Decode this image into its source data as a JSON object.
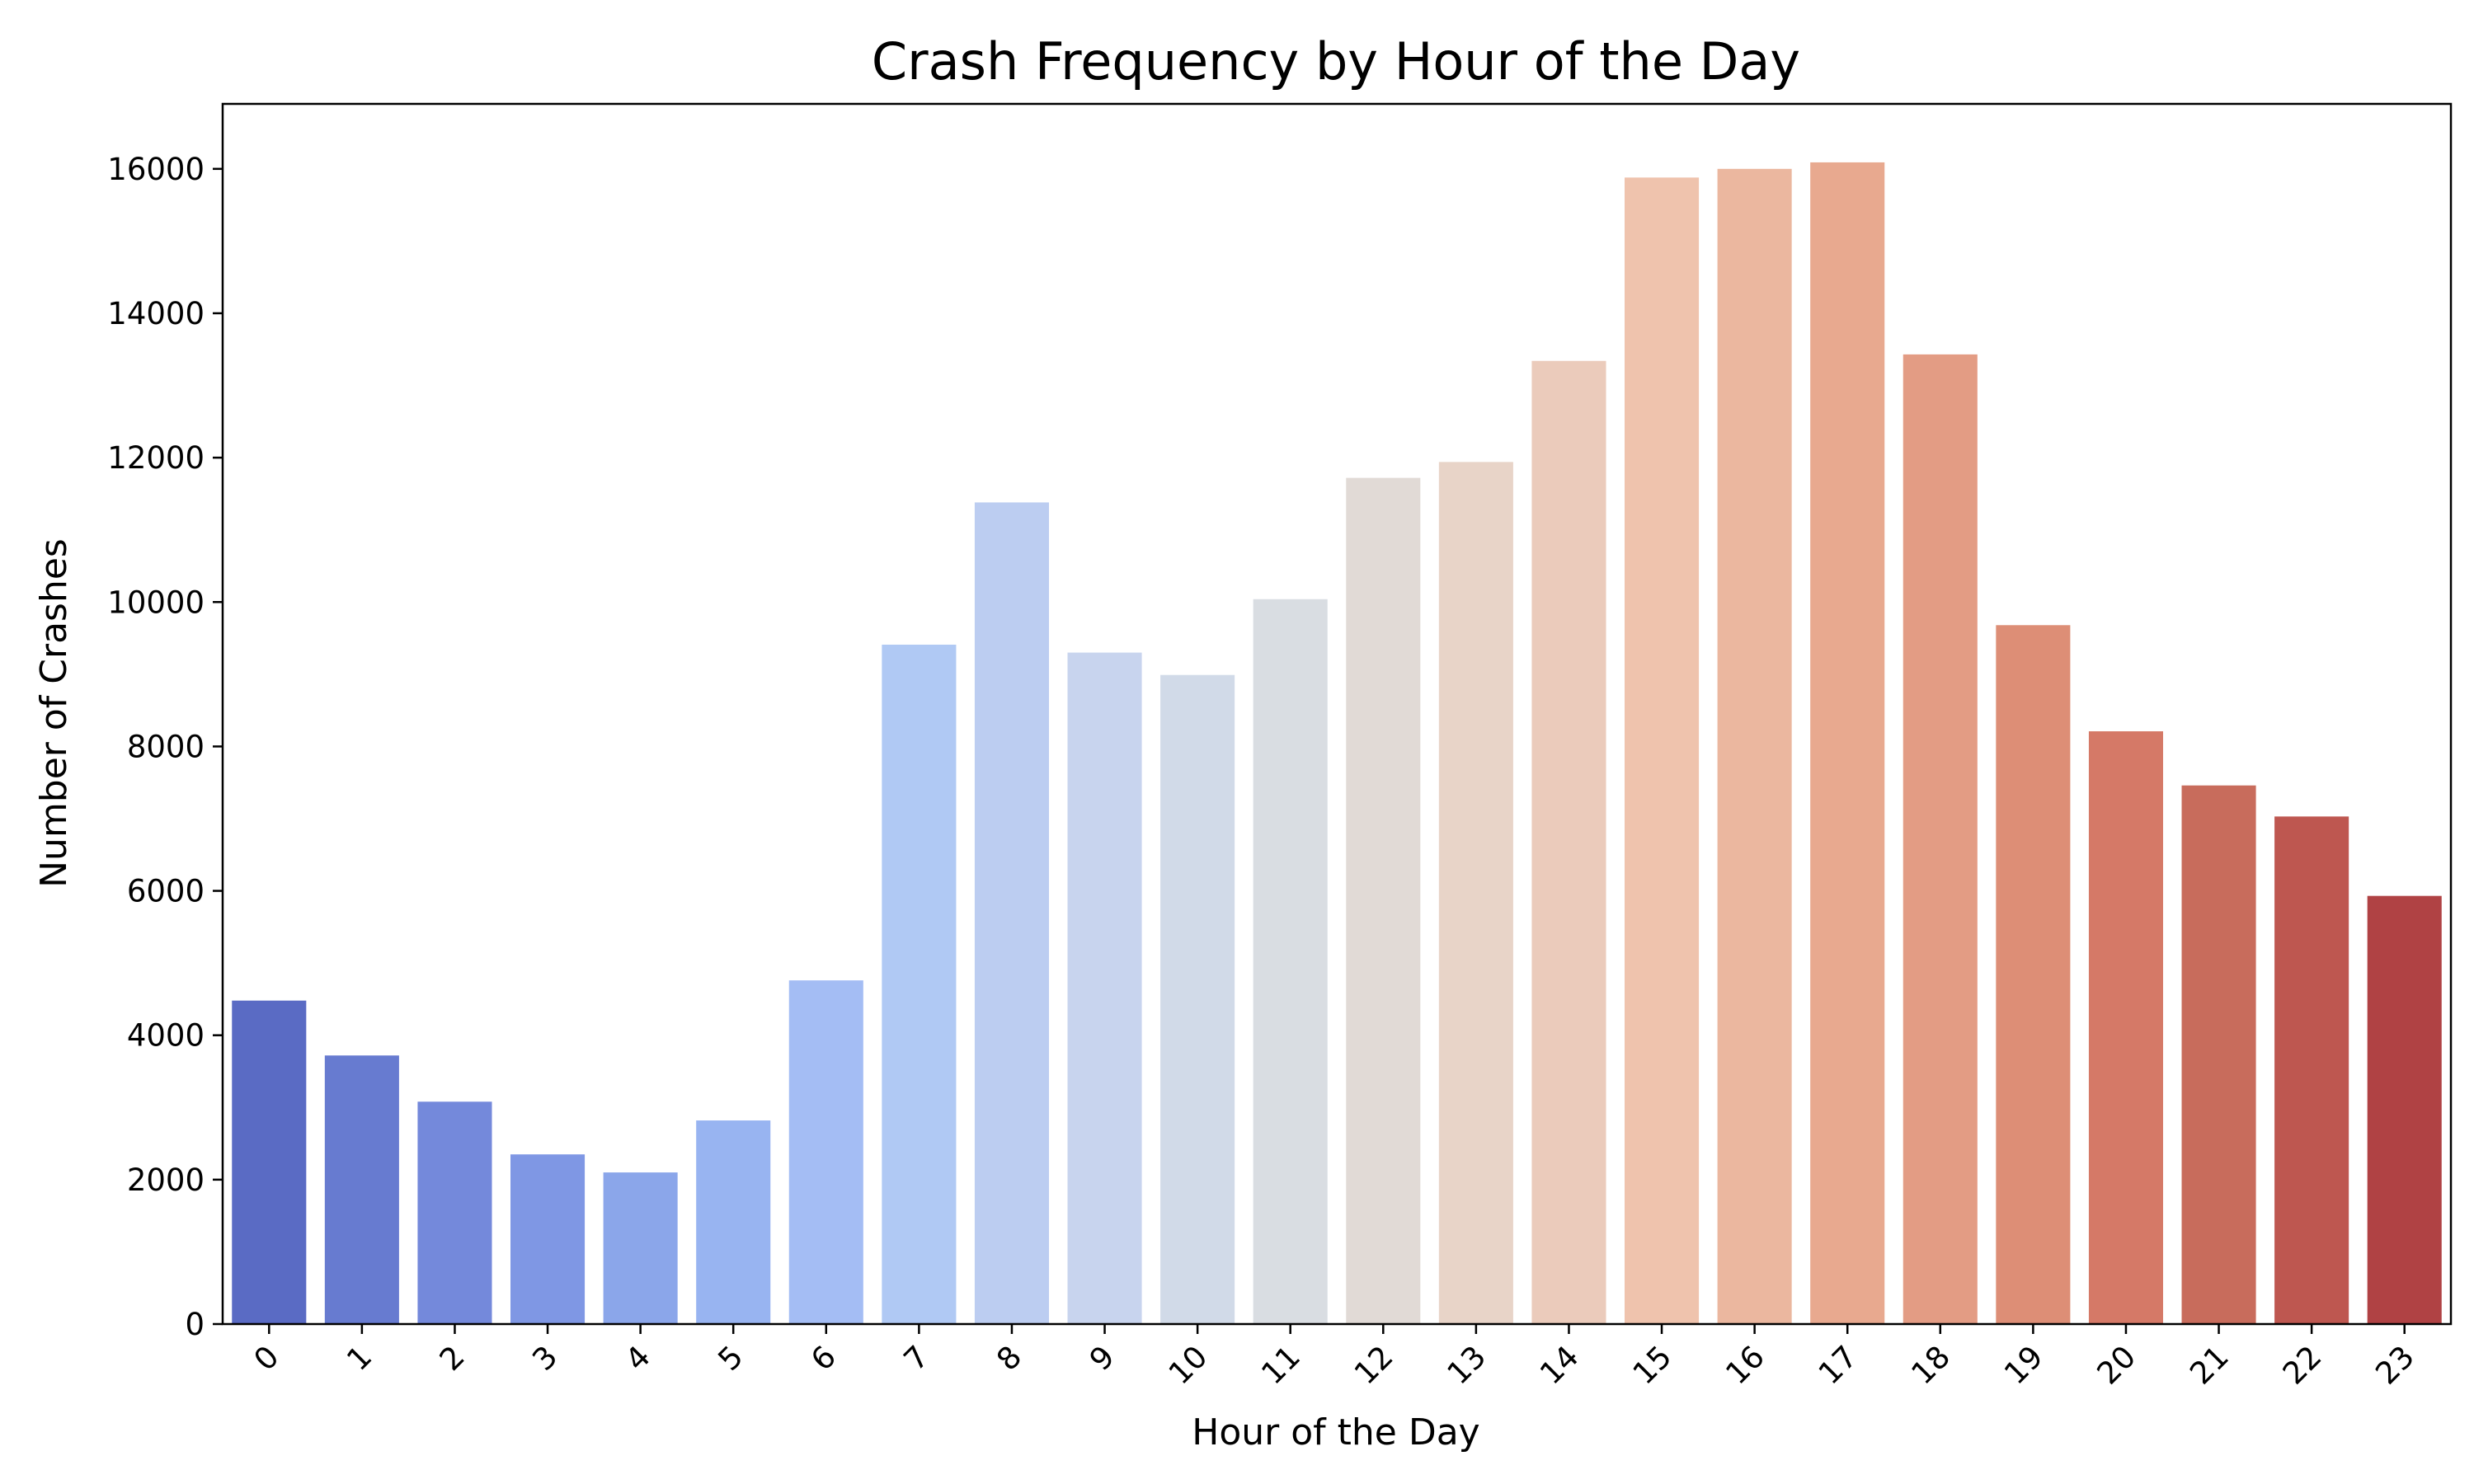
{
  "chart_data": {
    "type": "bar",
    "title": "Crash Frequency by Hour of the Day",
    "xlabel": "Hour of the Day",
    "ylabel": "Number of Crashes",
    "categories": [
      "0",
      "1",
      "2",
      "3",
      "4",
      "5",
      "6",
      "7",
      "8",
      "9",
      "10",
      "11",
      "12",
      "13",
      "14",
      "15",
      "16",
      "17",
      "18",
      "19",
      "20",
      "21",
      "22",
      "23"
    ],
    "values": [
      4480,
      3720,
      3080,
      2350,
      2100,
      2820,
      4760,
      9410,
      11380,
      9300,
      8990,
      10040,
      11720,
      11940,
      13340,
      15880,
      16000,
      16090,
      13430,
      9680,
      8210,
      7460,
      7030,
      5930
    ],
    "colors": [
      "#5a6bc4",
      "#677bd0",
      "#7489db",
      "#7f97e4",
      "#8ba6ea",
      "#98b4f1",
      "#a4bdf4",
      "#b0c9f4",
      "#bccdf1",
      "#c8d4ee",
      "#d1dae8",
      "#d9dde2",
      "#e1dad6",
      "#e8d4c8",
      "#ebcbbb",
      "#efc3ad",
      "#ebb79f",
      "#e8a98f",
      "#e39c84",
      "#dd8e76",
      "#d57967",
      "#c86c5c",
      "#be5750",
      "#b04244"
    ],
    "y_ticks": [
      "0",
      "2000",
      "4000",
      "6000",
      "8000",
      "10000",
      "12000",
      "14000",
      "16000"
    ],
    "ylim": [
      0,
      16900
    ],
    "grid": false,
    "legend": "none"
  }
}
